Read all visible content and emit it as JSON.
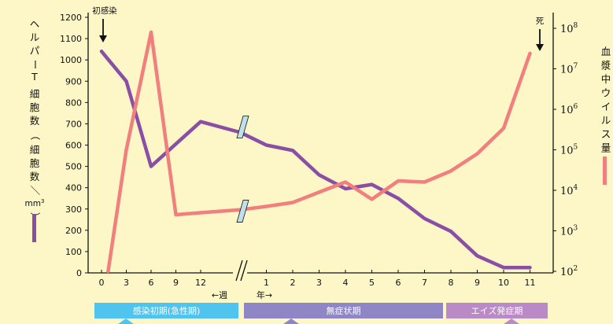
{
  "chart_data": {
    "type": "line",
    "colors": {
      "background": "#fdf7c8",
      "cd4": "#8a4ea4",
      "viral": "#f07f7d",
      "axis": "#111111"
    },
    "left_axis": {
      "label": "ヘルパーT細胞数（細胞数／mm³）",
      "label_chars": [
        "ヘ",
        "ル",
        "パ",
        "ー",
        "T",
        "細",
        "胞",
        "数",
        "（",
        "細",
        "胞",
        "数",
        "／",
        "mm³",
        "）"
      ],
      "ylim": [
        0,
        1200
      ],
      "ticks": [
        "0",
        "100",
        "200",
        "300",
        "400",
        "500",
        "600",
        "700",
        "800",
        "900",
        "1000",
        "1100",
        "1200"
      ],
      "unit_label": "mm",
      "unit_sup": "3"
    },
    "right_axis": {
      "label": "血漿中ウイルス量",
      "label_chars": [
        "血",
        "漿",
        "中",
        "ウ",
        "イ",
        "ル",
        "ス",
        "量"
      ],
      "scale": "log",
      "ticks": [
        {
          "base": "10",
          "exp": "2"
        },
        {
          "base": "10",
          "exp": "3"
        },
        {
          "base": "10",
          "exp": "4"
        },
        {
          "base": "10",
          "exp": "5"
        },
        {
          "base": "10",
          "exp": "6"
        },
        {
          "base": "10",
          "exp": "7"
        },
        {
          "base": "10",
          "exp": "8"
        }
      ]
    },
    "x_axis": {
      "week_ticks": [
        "0",
        "3",
        "6",
        "9",
        "12"
      ],
      "year_ticks": [
        "1",
        "2",
        "3",
        "4",
        "5",
        "6",
        "7",
        "8",
        "9",
        "10",
        "11"
      ],
      "week_label": "←週",
      "year_label": "年→"
    },
    "series": [
      {
        "key": "cd4",
        "weeks": [
          [
            0,
            1040
          ],
          [
            3,
            900
          ],
          [
            6,
            500
          ],
          [
            9,
            605
          ],
          [
            12,
            710
          ]
        ],
        "years": [
          [
            0,
            660
          ],
          [
            1,
            600
          ],
          [
            2,
            575
          ],
          [
            3,
            460
          ],
          [
            4,
            395
          ],
          [
            5,
            415
          ],
          [
            6,
            350
          ],
          [
            7,
            255
          ],
          [
            8,
            195
          ],
          [
            9,
            80
          ],
          [
            10,
            25
          ],
          [
            11,
            25
          ]
        ]
      },
      {
        "key": "viral",
        "weeks": [
          [
            0.8,
            100
          ],
          [
            3,
            100000
          ],
          [
            6,
            80000000
          ],
          [
            9,
            2500
          ],
          [
            12,
            2800
          ]
        ],
        "years": [
          [
            0,
            3300
          ],
          [
            1,
            4000
          ],
          [
            2,
            5000
          ],
          [
            3,
            9000
          ],
          [
            4,
            16000
          ],
          [
            5,
            6000
          ],
          [
            6,
            17000
          ],
          [
            7,
            16000
          ],
          [
            8,
            30000
          ],
          [
            9,
            80000
          ],
          [
            10,
            340000
          ],
          [
            11,
            24000000
          ]
        ]
      }
    ],
    "annotations": {
      "infection": "初感染",
      "death": "死"
    },
    "phases": [
      {
        "label": "感染初期(急性期)",
        "color": "#4fc4ee"
      },
      {
        "label": "無症状期",
        "color": "#8f86c6"
      },
      {
        "label": "エイズ発症期",
        "color": "#ba8ac6"
      }
    ]
  }
}
